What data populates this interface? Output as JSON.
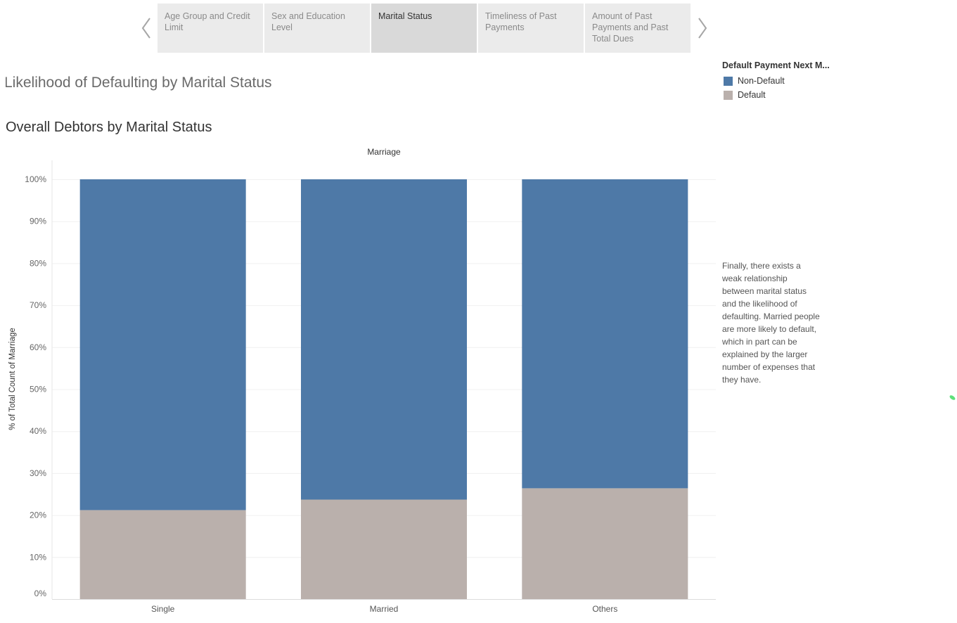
{
  "story_nav": {
    "points": [
      {
        "label": "Age Group and Credit Limit",
        "lines": [
          "Age Group and Credit",
          "Limit"
        ],
        "active": false
      },
      {
        "label": "Sex and Education Level",
        "lines": [
          "Sex and Education",
          "Level"
        ],
        "active": false
      },
      {
        "label": "Marital Status",
        "lines": [
          "Marital Status"
        ],
        "active": true
      },
      {
        "label": "Timeliness of Past Payments",
        "lines": [
          "Timeliness of Past",
          "Payments"
        ],
        "active": false
      },
      {
        "label": "Amount of Past Payments and Past Total Dues",
        "lines": [
          "Amount of Past",
          "Payments and Past",
          "Total Dues"
        ],
        "active": false
      }
    ],
    "prev_icon": "chevron-left-icon",
    "next_icon": "chevron-right-icon"
  },
  "titles": {
    "story_title": "Likelihood of Defaulting by Marital Status",
    "sheet_title": "Overall Debtors by Marital Status"
  },
  "legend": {
    "title": "Default Payment Next M...",
    "items": [
      {
        "label": "Non-Default",
        "color": "#4e79a7"
      },
      {
        "label": "Default",
        "color": "#bab0ac"
      }
    ]
  },
  "annotation": "Finally, there exists a\nweak relationship\nbetween marital status\nand the likelihood of\ndefaulting. Married people\nare more likely to default,\nwhich in part can be\nexplained by the larger\nnumber of expenses that\nthey have.",
  "chart_data": {
    "type": "bar",
    "stacked": true,
    "title": "",
    "column_header": "Marriage",
    "xlabel": "",
    "ylabel": "% of Total Count of Marriage",
    "categories": [
      "Single",
      "Married",
      "Others"
    ],
    "series": [
      {
        "name": "Default",
        "color": "#bab0ac",
        "values": [
          21.2,
          23.7,
          26.4
        ]
      },
      {
        "name": "Non-Default",
        "color": "#4e79a7",
        "values": [
          78.8,
          76.3,
          73.6
        ]
      }
    ],
    "ylim": [
      0,
      100
    ],
    "yticks": [
      "0%",
      "10%",
      "20%",
      "30%",
      "40%",
      "50%",
      "60%",
      "70%",
      "80%",
      "90%",
      "100%"
    ],
    "grid": true
  }
}
